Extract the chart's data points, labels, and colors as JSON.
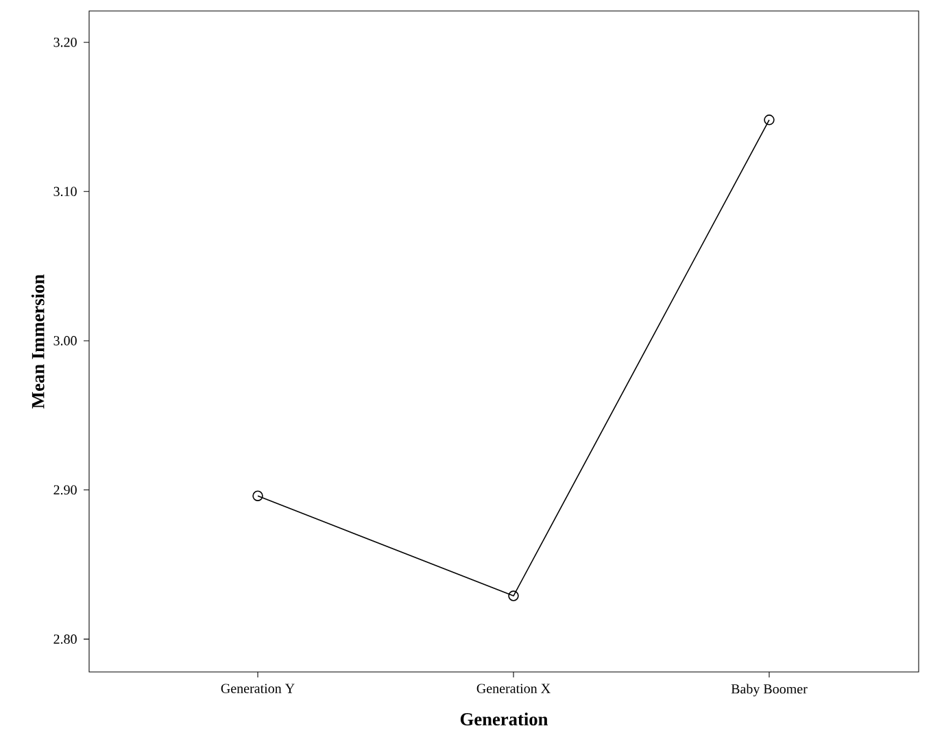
{
  "chart_data": {
    "type": "line",
    "xlabel": "Generation",
    "ylabel": "Mean Immersion",
    "categories": [
      "Generation Y",
      "Generation X",
      "Baby Boomer"
    ],
    "series": [
      {
        "color": "#000000",
        "values": [
          2.896,
          2.829,
          3.148
        ]
      }
    ],
    "ylim": [
      2.778,
      3.221
    ],
    "yticks": [
      {
        "value": 2.8,
        "label": "2.80"
      },
      {
        "value": 2.9,
        "label": "2.90"
      },
      {
        "value": 3.0,
        "label": "3.00"
      },
      {
        "value": 3.1,
        "label": "3.10"
      },
      {
        "value": 3.2,
        "label": "3.20"
      }
    ],
    "marker": "circle",
    "line_style": "solid",
    "grid": false
  }
}
